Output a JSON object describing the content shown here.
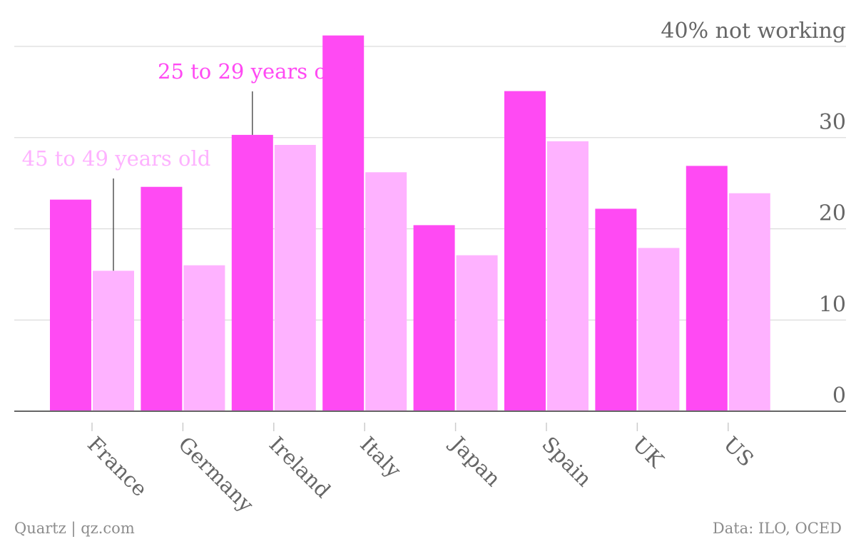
{
  "chart_data": {
    "type": "bar",
    "categories": [
      "France",
      "Germany",
      "Ireland",
      "Italy",
      "Japan",
      "Spain",
      "UK",
      "US"
    ],
    "series": [
      {
        "name": "25 to 29 years olds",
        "color": "#ff4af3",
        "values": [
          23.2,
          24.6,
          30.3,
          41.2,
          20.4,
          35.1,
          22.2,
          26.9
        ]
      },
      {
        "name": "45 to 49 years old",
        "color": "#feb2ff",
        "values": [
          15.4,
          16.0,
          29.2,
          26.2,
          17.1,
          29.6,
          17.9,
          23.9
        ]
      }
    ],
    "yticks": [
      0,
      10,
      20,
      30,
      40
    ],
    "ytick_labels": [
      "0",
      "10",
      "20",
      "30",
      "40% not working"
    ],
    "ylim": [
      0,
      42
    ],
    "grid": true,
    "annotations": [
      {
        "text": "25 to 29 years olds",
        "series": 0,
        "category": "Ireland"
      },
      {
        "text": "45 to 49 years old",
        "series": 1,
        "category": "France"
      }
    ]
  },
  "footer": {
    "source_left": "Quartz | qz.com",
    "source_right": "Data: ILO, OCED"
  }
}
